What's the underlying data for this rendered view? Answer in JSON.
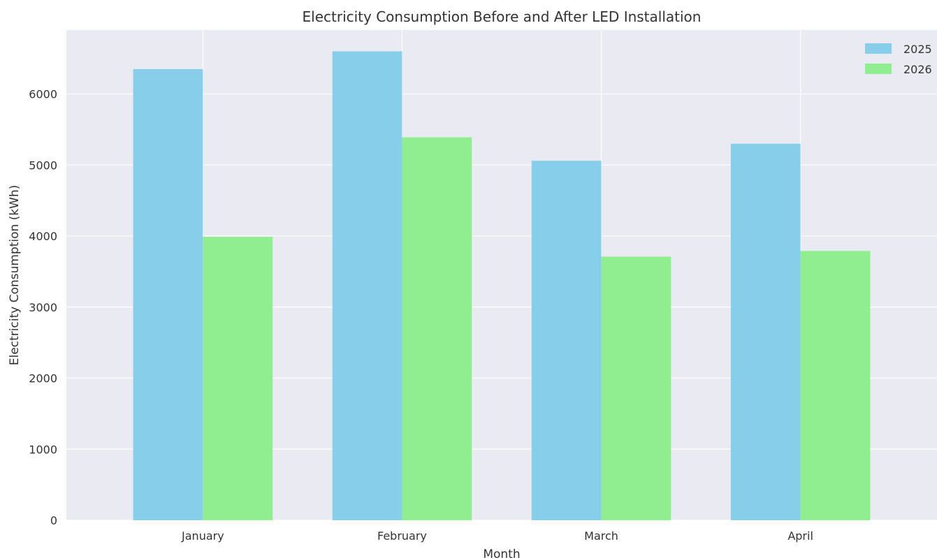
{
  "chart_data": {
    "type": "bar",
    "title": "Electricity Consumption Before and After LED Installation",
    "xlabel": "Month",
    "ylabel": "Electricity Consumption (kWh)",
    "categories": [
      "January",
      "February",
      "March",
      "April"
    ],
    "series": [
      {
        "name": "2025",
        "color": "#87CEEB",
        "values": [
          6350,
          6600,
          5060,
          5300
        ]
      },
      {
        "name": "2026",
        "color": "#90EE90",
        "values": [
          3990,
          5390,
          3710,
          3790
        ]
      }
    ],
    "ylim": [
      0,
      6900
    ],
    "yticks": [
      "0",
      "1000",
      "2000",
      "3000",
      "4000",
      "5000",
      "6000"
    ],
    "grid": true,
    "legend_position": "top-right",
    "background_color": "#EAEAF2",
    "grid_color": "#FFFFFF"
  }
}
